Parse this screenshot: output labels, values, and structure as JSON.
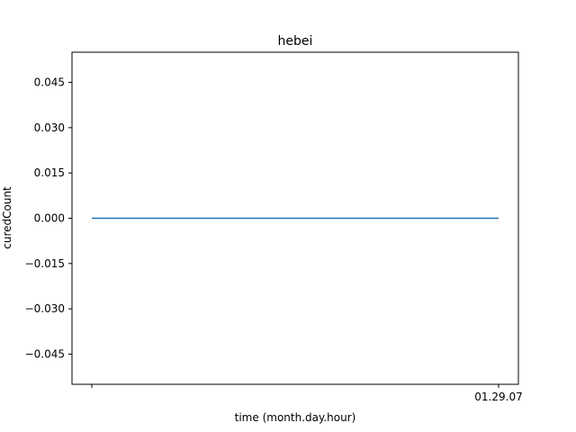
{
  "chart_data": {
    "type": "line",
    "title": "hebei",
    "xlabel": "time (month.day.hour)",
    "ylabel": "curedCount",
    "x": [
      "",
      "01.29.07"
    ],
    "series": [
      {
        "values": [
          0,
          0
        ],
        "color": "#1f77b4"
      }
    ],
    "ylim": [
      -0.055,
      0.055
    ],
    "yticks": [
      -0.045,
      -0.03,
      -0.015,
      0.0,
      0.015,
      0.03,
      0.045
    ],
    "ytick_labels": [
      "−0.045",
      "−0.030",
      "−0.015",
      "0.000",
      "0.015",
      "0.030",
      "0.045"
    ],
    "xtick_labels": [
      "",
      "01.29.07"
    ],
    "grid": false,
    "legend": "none"
  }
}
